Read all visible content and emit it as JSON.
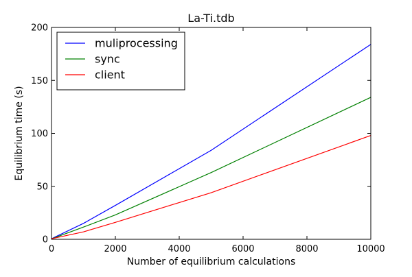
{
  "chart_data": {
    "type": "line",
    "title": "La-Ti.tdb",
    "xlabel": "Number of equilibrium calculations",
    "ylabel": "Equilibrium time (s)",
    "xlim": [
      0,
      10000
    ],
    "ylim": [
      0,
      200
    ],
    "xticks": [
      0,
      2000,
      4000,
      6000,
      8000,
      10000
    ],
    "yticks": [
      0,
      50,
      100,
      150,
      200
    ],
    "grid": false,
    "legend_position": "top-left",
    "series": [
      {
        "name": "muliprocessing",
        "color": "#0000ff",
        "x": [
          0,
          100,
          1000,
          2000,
          5000,
          10000
        ],
        "y": [
          0.5,
          2,
          15,
          32,
          84,
          184
        ]
      },
      {
        "name": "sync",
        "color": "#008000",
        "x": [
          0,
          100,
          1000,
          2000,
          5000,
          10000
        ],
        "y": [
          0.3,
          1.5,
          11.5,
          23,
          63,
          134
        ]
      },
      {
        "name": "client",
        "color": "#ff0000",
        "x": [
          0,
          100,
          1000,
          2000,
          5000,
          10000
        ],
        "y": [
          0.5,
          1.2,
          7,
          16,
          44,
          98
        ]
      }
    ]
  }
}
